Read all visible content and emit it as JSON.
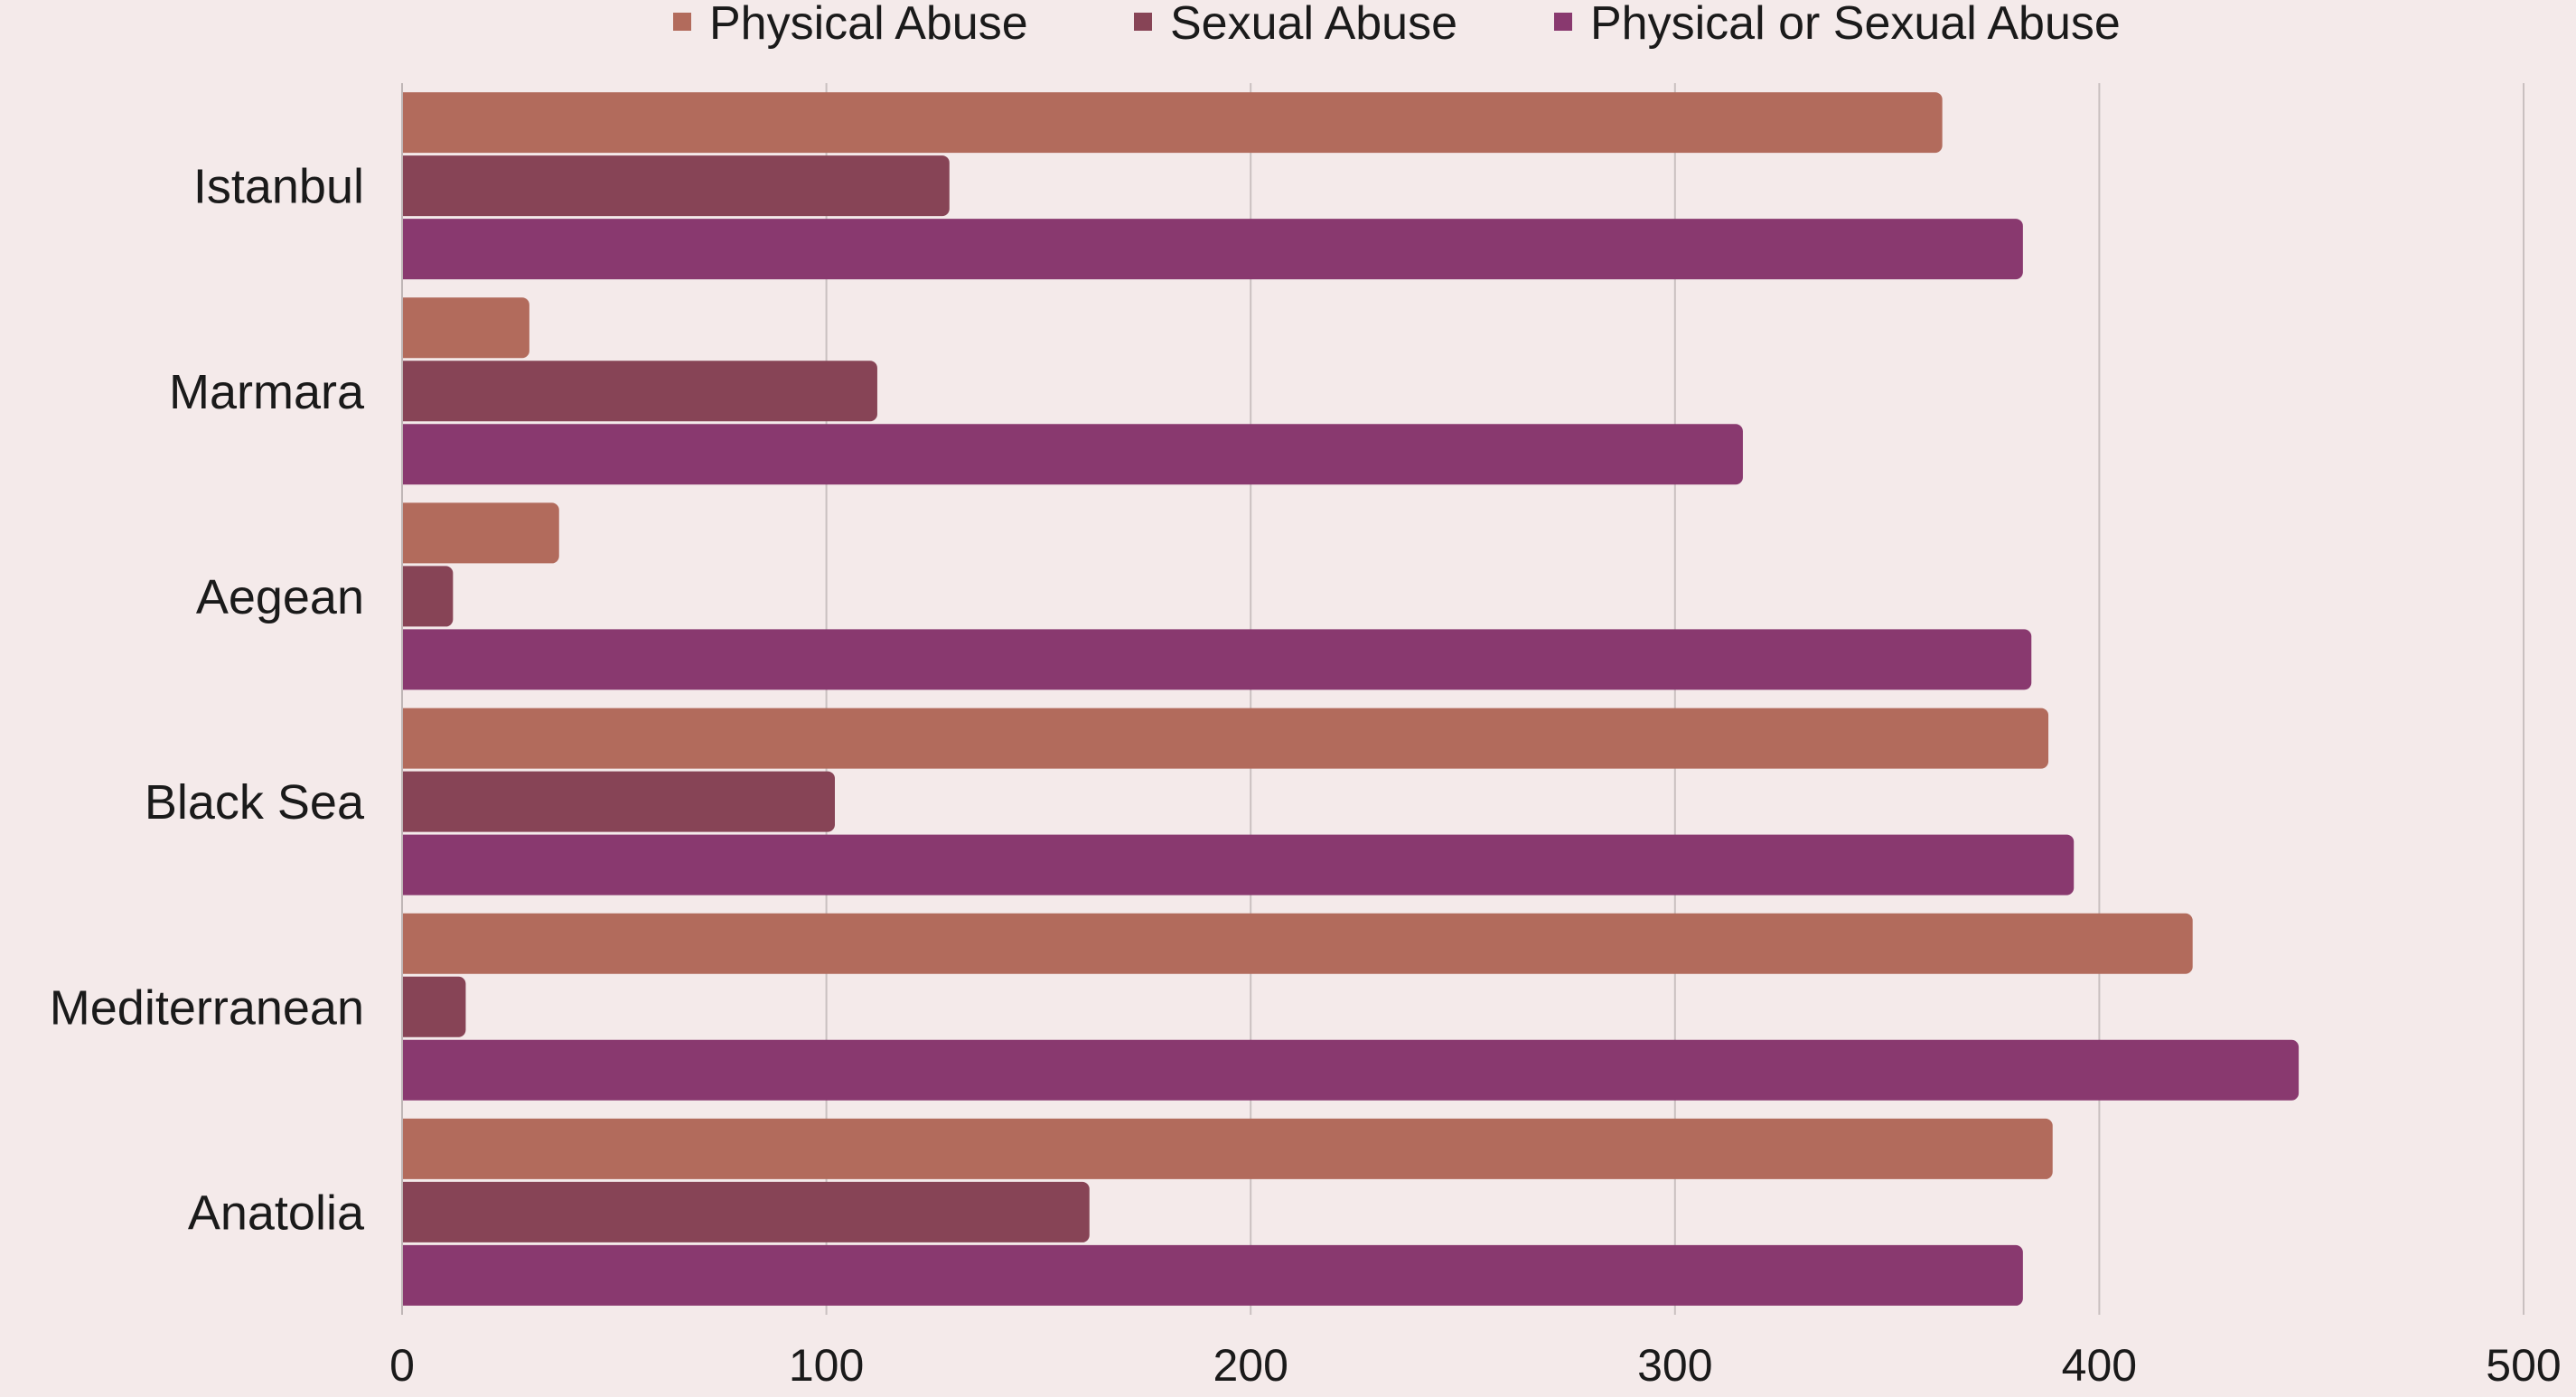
{
  "colors": {
    "background": "#f4eaea",
    "physical": "#b26b5c",
    "sexual": "#874456",
    "either": "#89396f"
  },
  "chart_data": {
    "type": "bar",
    "orientation": "horizontal",
    "categories": [
      "Istanbul",
      "Marmara",
      "Aegean",
      "Black Sea",
      "Mediterranean",
      "Anatolia"
    ],
    "series": [
      {
        "name": "Physical Abuse",
        "color": "#b26b5c",
        "values": [
          363,
          30,
          37,
          388,
          422,
          389
        ]
      },
      {
        "name": "Sexual Abuse",
        "color": "#874456",
        "values": [
          129,
          112,
          12,
          102,
          15,
          162
        ]
      },
      {
        "name": "Physical or Sexual Abuse",
        "color": "#89396f",
        "values": [
          382,
          316,
          384,
          394,
          447,
          382
        ]
      }
    ],
    "xlim": [
      0,
      500
    ],
    "xticks": [
      "0",
      "100",
      "200",
      "300",
      "400",
      "500"
    ],
    "grid": true,
    "legend_position": "top-center",
    "title": "",
    "xlabel": "",
    "ylabel": ""
  }
}
